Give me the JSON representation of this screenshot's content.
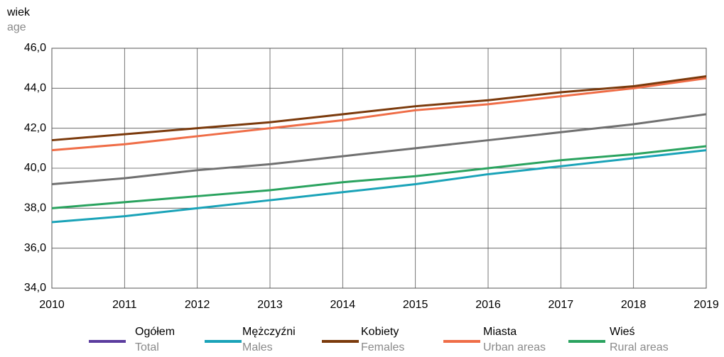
{
  "chart_data": {
    "type": "line",
    "y_label": "wiek",
    "y_label_en": "age",
    "categories": [
      "2010",
      "2011",
      "2012",
      "2013",
      "2014",
      "2015",
      "2016",
      "2017",
      "2018",
      "2019"
    ],
    "series": [
      {
        "name": "Ogółem",
        "name_en": "Total",
        "color": "#707070",
        "legend_color": "#5b3c9e",
        "values": [
          39.2,
          39.5,
          39.9,
          40.2,
          40.6,
          41.0,
          41.4,
          41.8,
          42.2,
          42.7
        ]
      },
      {
        "name": "Mężczyźni",
        "name_en": "Males",
        "color": "#1aa3b8",
        "values": [
          37.3,
          37.6,
          38.0,
          38.4,
          38.8,
          39.2,
          39.7,
          40.1,
          40.5,
          40.9
        ]
      },
      {
        "name": "Kobiety",
        "name_en": "Females",
        "color": "#7b3a0c",
        "values": [
          41.4,
          41.7,
          42.0,
          42.3,
          42.7,
          43.1,
          43.4,
          43.8,
          44.1,
          44.6
        ]
      },
      {
        "name": "Miasta",
        "name_en": "Urban areas",
        "color": "#ef6d47",
        "values": [
          40.9,
          41.2,
          41.6,
          42.0,
          42.4,
          42.9,
          43.2,
          43.6,
          44.0,
          44.5
        ]
      },
      {
        "name": "Wieś",
        "name_en": "Rural areas",
        "color": "#2aa35f",
        "values": [
          38.0,
          38.3,
          38.6,
          38.9,
          39.3,
          39.6,
          40.0,
          40.4,
          40.7,
          41.1
        ]
      }
    ],
    "ylim": [
      34,
      46
    ],
    "yticks": [
      {
        "value": 34,
        "label": "34,0"
      },
      {
        "value": 36,
        "label": "36,0"
      },
      {
        "value": 38,
        "label": "38,0"
      },
      {
        "value": 40,
        "label": "40,0"
      },
      {
        "value": 42,
        "label": "42,0"
      },
      {
        "value": 44,
        "label": "44,0"
      },
      {
        "value": 46,
        "label": "46,0"
      }
    ],
    "grid": true
  }
}
